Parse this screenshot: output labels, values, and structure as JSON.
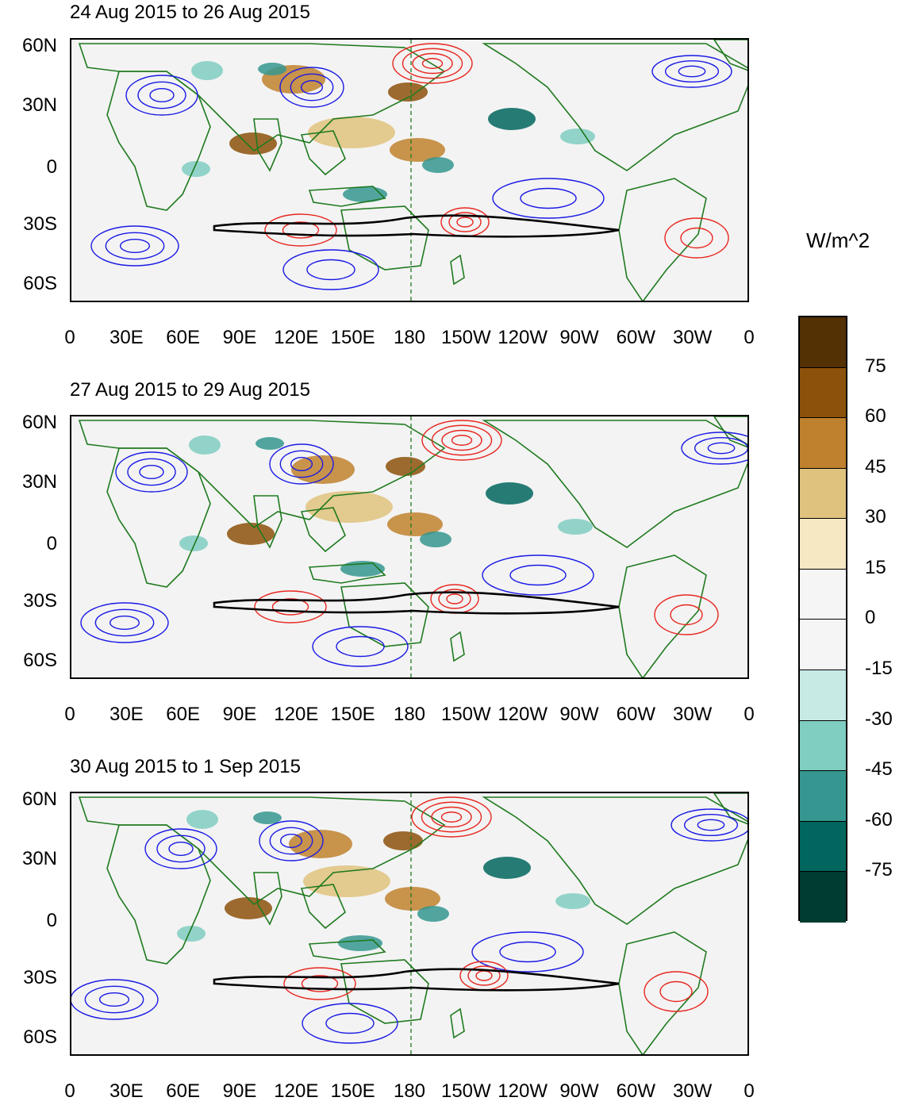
{
  "panels": [
    {
      "title": "24 Aug 2015 to 26 Aug 2015"
    },
    {
      "title": "27 Aug 2015 to 29 Aug 2015"
    },
    {
      "title": "30 Aug 2015 to 1 Sep 2015"
    }
  ],
  "lat_labels": [
    "60N",
    "30N",
    "0",
    "30S",
    "60S"
  ],
  "lon_labels": [
    "0",
    "30E",
    "60E",
    "90E",
    "120E",
    "150E",
    "180",
    "150W",
    "120W",
    "90W",
    "60W",
    "30W",
    "0"
  ],
  "colorbar": {
    "units": "W/m^2",
    "tick_labels": [
      "75",
      "60",
      "45",
      "30",
      "15",
      "0",
      "-15",
      "-30",
      "-45",
      "-60",
      "-75"
    ],
    "colors": [
      "#543005",
      "#8c510a",
      "#bf812d",
      "#dfc27d",
      "#f6e8c3",
      "#f5f5f5",
      "#f5f5f5",
      "#c7eae5",
      "#80cdc1",
      "#35978f",
      "#01665e",
      "#003c30"
    ]
  },
  "colors": {
    "coast": "#1f7a1f",
    "positive_contour": "#e8261f",
    "negative_contour": "#1a1ae6",
    "zero_contour": "#000000",
    "map_background": "#f3f3f3"
  }
}
